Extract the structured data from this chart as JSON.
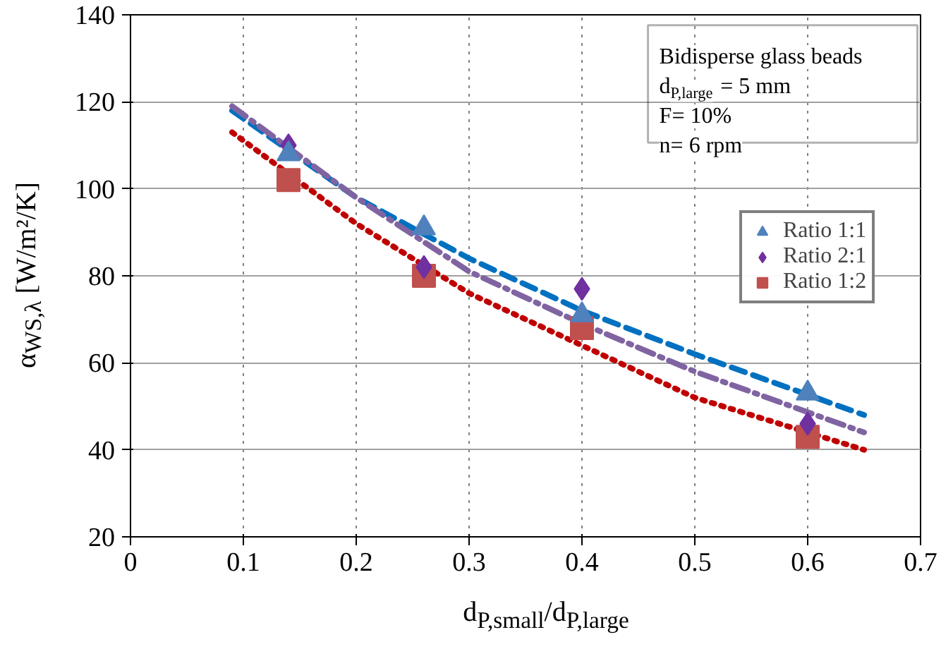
{
  "chart_data": {
    "type": "scatter",
    "xlabel": "d$_{P,small}$/d$_{P,large}$",
    "ylabel": "α$_{WS,λ}$ [W/m²/K]",
    "xlim": [
      0,
      0.7
    ],
    "ylim": [
      20,
      140
    ],
    "xticks": [
      0,
      0.1,
      0.2,
      0.3,
      0.4,
      0.5,
      0.6,
      0.7
    ],
    "yticks": [
      20,
      40,
      60,
      80,
      100,
      120,
      140
    ],
    "grid": true,
    "legend": "right",
    "annotations": [
      "Bidisperse glass beads",
      "d$_{P,large}$ = 5 mm",
      "F= 10%",
      "n= 6 rpm"
    ],
    "series": [
      {
        "type": "line",
        "line_style": "dashed",
        "color": "#0070c0",
        "x": [
          0.09,
          0.2,
          0.3,
          0.4,
          0.5,
          0.65
        ],
        "values": [
          118,
          98,
          84,
          72,
          62,
          48
        ]
      },
      {
        "type": "line",
        "line_style": "dashdot",
        "color": "#8064a2",
        "x": [
          0.09,
          0.2,
          0.3,
          0.4,
          0.5,
          0.65
        ],
        "values": [
          119,
          98,
          81,
          69,
          58,
          44
        ]
      },
      {
        "type": "line",
        "line_style": "dotted",
        "color": "#c00000",
        "x": [
          0.09,
          0.2,
          0.3,
          0.4,
          0.5,
          0.65
        ],
        "values": [
          113,
          92,
          76,
          64,
          52,
          40
        ]
      },
      {
        "name": "Ratio 1:1",
        "marker": "triangle",
        "color": "#4f81bd",
        "x": [
          0.14,
          0.26,
          0.4,
          0.6
        ],
        "values": [
          108,
          91,
          71,
          53
        ]
      },
      {
        "name": "Ratio 2:1",
        "marker": "diamond",
        "color": "#7030a0",
        "x": [
          0.14,
          0.26,
          0.4,
          0.6
        ],
        "values": [
          110,
          82,
          77,
          46
        ]
      },
      {
        "name": "Ratio 1:2",
        "marker": "square",
        "color": "#c0504d",
        "x": [
          0.14,
          0.26,
          0.4,
          0.6
        ],
        "values": [
          102,
          80,
          68,
          43
        ]
      }
    ]
  }
}
